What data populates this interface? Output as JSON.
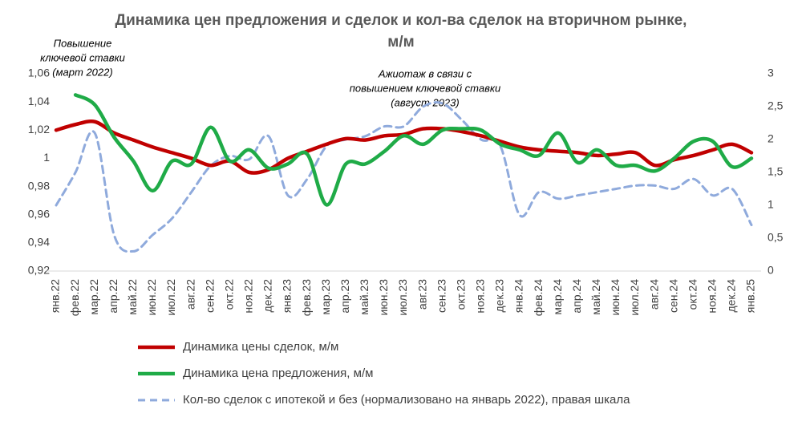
{
  "chart_data": {
    "type": "line",
    "title": [
      "Динамика цен предложения и сделок и кол-ва сделок на вторичном рынке,",
      "м/м"
    ],
    "annotations": [
      {
        "text": [
          "Повышение",
          "ключевой ставки",
          "(март 2022)"
        ]
      },
      {
        "text": [
          "Ажиотаж в связи с",
          "повышением ключевой ставки",
          "(август 2023)"
        ]
      }
    ],
    "categories": [
      "янв.22",
      "фев.22",
      "мар.22",
      "апр.22",
      "май.22",
      "июн.22",
      "июл.22",
      "авг.22",
      "сен.22",
      "окт.22",
      "ноя.22",
      "дек.22",
      "янв.23",
      "фев.23",
      "мар.23",
      "апр.23",
      "май.23",
      "июн.23",
      "июл.23",
      "авг.23",
      "сен.23",
      "окт.23",
      "ноя.23",
      "дек.23",
      "янв.24",
      "фев.24",
      "мар.24",
      "апр.24",
      "май.24",
      "июн.24",
      "июл.24",
      "авг.24",
      "сен.24",
      "окт.24",
      "ноя.24",
      "дек.24",
      "янв.25"
    ],
    "series": [
      {
        "name": "Динамика цены сделок, м/м",
        "color": "#c00000",
        "dash": false,
        "values": [
          1.02,
          1.024,
          1.026,
          1.018,
          1.013,
          1.008,
          1.004,
          1.0,
          0.995,
          0.998,
          0.99,
          0.992,
          1.0,
          1.005,
          1.01,
          1.014,
          1.013,
          1.016,
          1.017,
          1.021,
          1.021,
          1.019,
          1.016,
          1.012,
          1.008,
          1.006,
          1.005,
          1.004,
          1.002,
          1.003,
          1.004,
          0.995,
          0.999,
          1.002,
          1.006,
          1.01,
          1.004
        ]
      },
      {
        "name": "Динамика цена предложения, м/м",
        "color": "#1fab47",
        "dash": false,
        "values": [
          null,
          1.045,
          1.038,
          1.015,
          0.998,
          0.977,
          0.998,
          0.996,
          1.022,
          0.998,
          1.006,
          0.993,
          0.996,
          1.003,
          0.967,
          0.996,
          0.996,
          1.005,
          1.016,
          1.01,
          1.02,
          1.021,
          1.02,
          1.01,
          1.006,
          1.002,
          1.018,
          0.997,
          1.006,
          0.995,
          0.995,
          0.991,
          1.0,
          1.012,
          1.012,
          0.994,
          1.0
        ]
      },
      {
        "name": "Кол-во сделок с ипотекой и без (нормализовано на январь 2022),  правая шкала",
        "color": "#8faadc",
        "dash": true,
        "axis": "y2",
        "values": [
          1.0,
          1.5,
          2.1,
          0.55,
          0.3,
          0.55,
          0.8,
          1.2,
          1.6,
          1.75,
          1.7,
          2.05,
          1.15,
          1.4,
          1.9,
          2.0,
          2.05,
          2.2,
          2.2,
          2.5,
          2.55,
          2.3,
          2.0,
          1.9,
          0.85,
          1.2,
          1.1,
          1.15,
          1.2,
          1.25,
          1.3,
          1.3,
          1.25,
          1.4,
          1.15,
          1.25,
          0.7
        ]
      }
    ],
    "ylim": [
      0.92,
      1.06
    ],
    "yticks": [
      {
        "value": 0.92,
        "label": "0,92"
      },
      {
        "value": 0.94,
        "label": "0,94"
      },
      {
        "value": 0.96,
        "label": "0,96"
      },
      {
        "value": 0.98,
        "label": "0,98"
      },
      1,
      {
        "value": 1.02,
        "label": "1,02"
      },
      {
        "value": 1.04,
        "label": "1,04"
      },
      {
        "value": 1.06,
        "label": "1,06"
      }
    ],
    "y2lim": [
      0,
      3
    ],
    "y2ticks": [
      0,
      {
        "value": 0.5,
        "label": "0,5"
      },
      1,
      {
        "value": 1.5,
        "label": "1,5"
      },
      2,
      {
        "value": 2.5,
        "label": "2,5"
      },
      3
    ],
    "grid": false
  }
}
